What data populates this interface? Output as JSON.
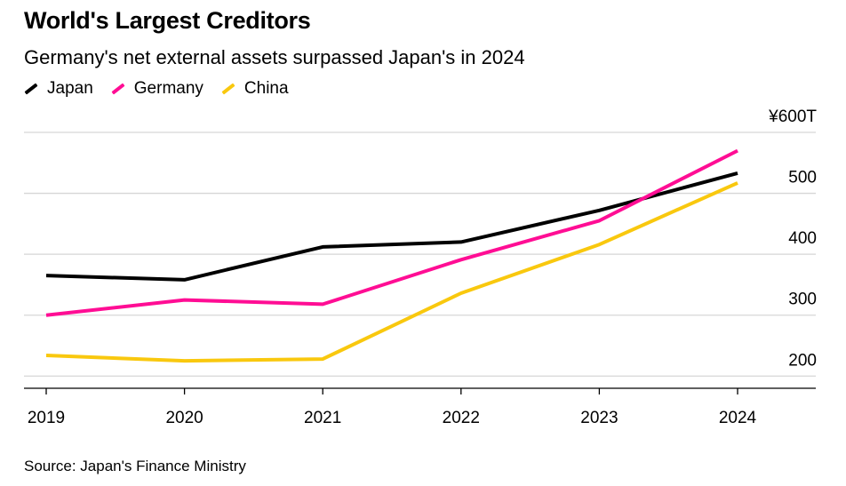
{
  "title": "World's Largest Creditors",
  "subtitle": "Germany's net external assets surpassed Japan's in 2024",
  "source": "Source: Japan's Finance Ministry",
  "chart_data": {
    "type": "line",
    "title": "World's Largest Creditors",
    "subtitle": "Germany's net external assets surpassed Japan's in 2024",
    "x": [
      "2019",
      "2020",
      "2021",
      "2022",
      "2023",
      "2024"
    ],
    "series": [
      {
        "name": "Japan",
        "color": "#000000",
        "values": [
          365,
          358,
          412,
          420,
          472,
          533
        ]
      },
      {
        "name": "Germany",
        "color": "#ff0d94",
        "values": [
          300,
          325,
          318,
          391,
          455,
          570
        ]
      },
      {
        "name": "China",
        "color": "#f9c80e",
        "values": [
          234,
          225,
          228,
          336,
          416,
          517
        ]
      }
    ],
    "ylim": [
      180,
      600
    ],
    "yticks": [
      200,
      300,
      400,
      500,
      600
    ],
    "ytick_labels": [
      "200",
      "300",
      "400",
      "500",
      "¥600T"
    ],
    "grid": true,
    "legend_position": "top-left",
    "xlabel": "",
    "ylabel": ""
  }
}
